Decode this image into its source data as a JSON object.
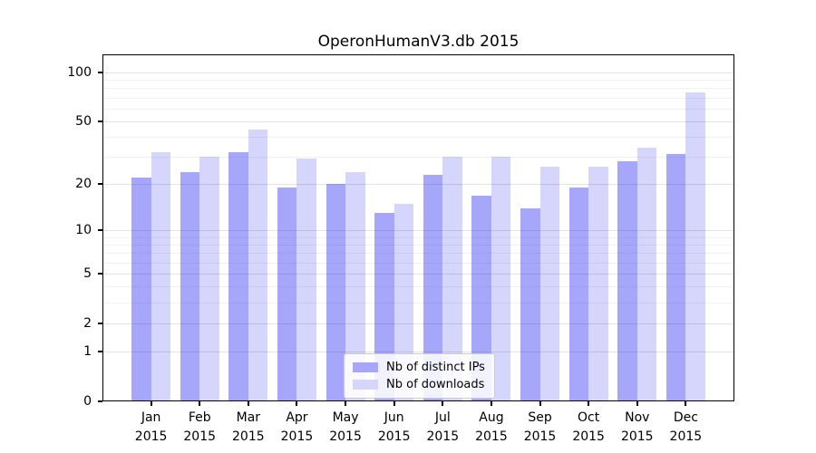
{
  "chart_data": {
    "type": "bar",
    "title": "OperonHumanV3.db 2015",
    "categories": [
      "Jan",
      "Feb",
      "Mar",
      "Apr",
      "May",
      "Jun",
      "Jul",
      "Aug",
      "Sep",
      "Oct",
      "Nov",
      "Dec"
    ],
    "category_year": "2015",
    "series": [
      {
        "name": "Nb of distinct IPs",
        "color_hex": "#a6a6fa",
        "color_rgba": "rgba(0,0,240,0.35)",
        "values": [
          22,
          24,
          32,
          19,
          20,
          13,
          23,
          17,
          14,
          19,
          28,
          31
        ]
      },
      {
        "name": "Nb of downloads",
        "color_hex": "#d6d6fc",
        "color_rgba": "rgba(0,0,240,0.16)",
        "values": [
          32,
          30,
          44,
          29,
          24,
          15,
          30,
          30,
          26,
          26,
          34,
          75
        ]
      }
    ],
    "yscale": "log1p",
    "ylim": [
      0,
      129
    ],
    "ytick_labels": [
      "100",
      "50",
      "20",
      "10",
      "5",
      "2",
      "1",
      "0"
    ],
    "ytick_values": [
      100,
      50,
      20,
      10,
      5,
      2,
      1,
      0
    ],
    "major_gridlines": [
      1,
      2,
      5,
      10,
      20,
      50,
      100
    ],
    "minor_gridlines": [
      3,
      4,
      6,
      7,
      8,
      9,
      30,
      40,
      60,
      70,
      80,
      90
    ],
    "grid": "on",
    "legend_position": "bottom-center",
    "xlabel": "",
    "ylabel": ""
  }
}
